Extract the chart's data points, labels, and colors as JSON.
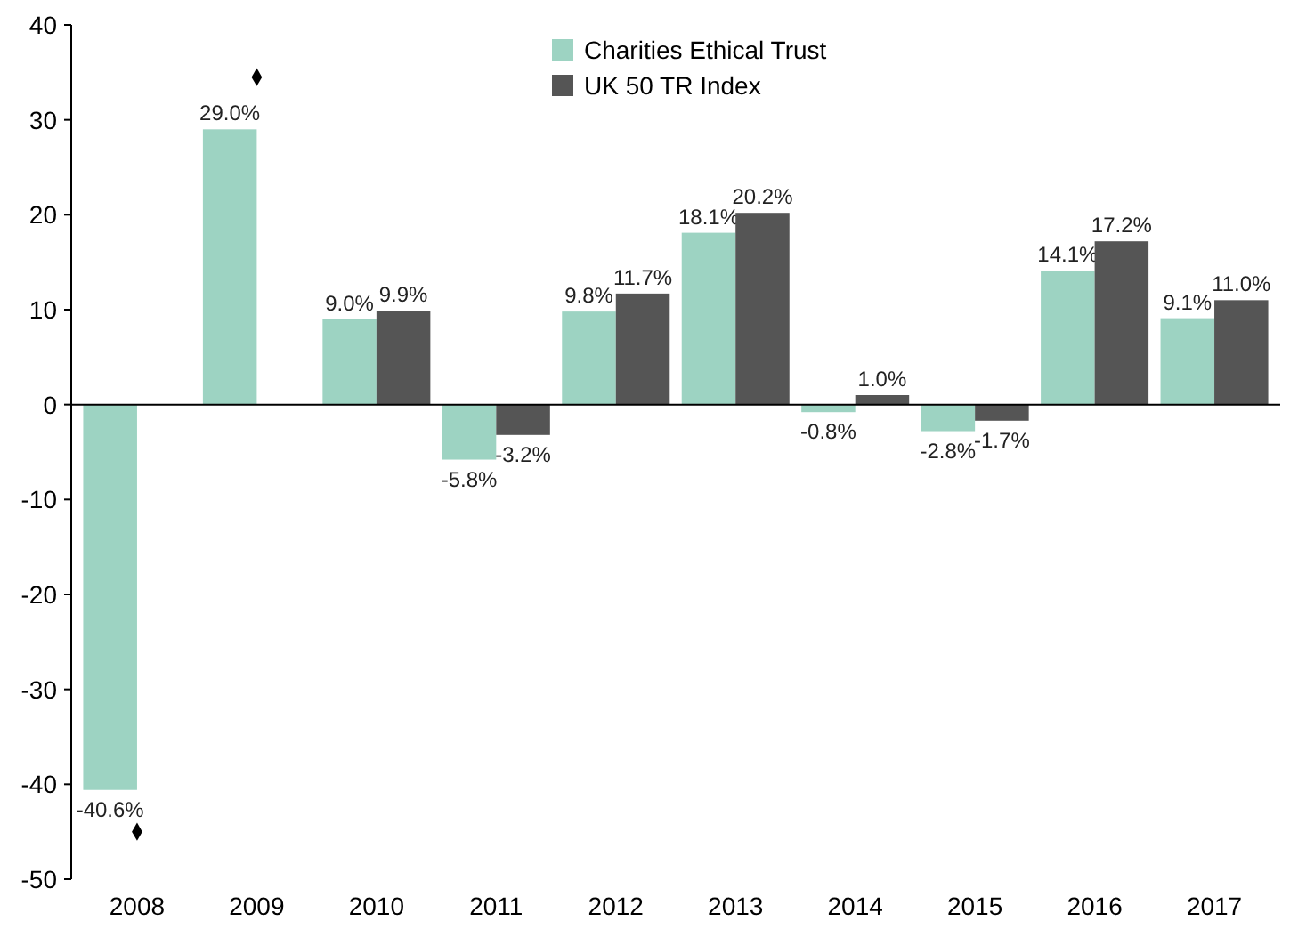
{
  "chart_data": {
    "type": "bar",
    "categories": [
      "2008",
      "2009",
      "2010",
      "2011",
      "2012",
      "2013",
      "2014",
      "2015",
      "2016",
      "2017"
    ],
    "series": [
      {
        "name": "Charities Ethical Trust",
        "color": "#9dd3c2",
        "values": [
          -40.6,
          29.0,
          9.0,
          -5.8,
          9.8,
          18.1,
          -0.8,
          -2.8,
          14.1,
          9.1
        ]
      },
      {
        "name": "UK 50 TR Index",
        "color": "#555555",
        "values": [
          null,
          null,
          9.9,
          -3.2,
          11.7,
          20.2,
          1.0,
          -1.7,
          17.2,
          11.0
        ]
      },
      {
        "type": "scatter",
        "color": "#000000",
        "values": [
          -45,
          34.5,
          null,
          null,
          null,
          null,
          null,
          null,
          null,
          null
        ]
      }
    ],
    "value_labels": [
      [
        "-40.6%",
        "29.0%",
        "9.0%",
        "-5.8%",
        "9.8%",
        "18.1%",
        "-0.8%",
        "-2.8%",
        "14.1%",
        "9.1%"
      ],
      [
        null,
        null,
        "9.9%",
        "-3.2%",
        "11.7%",
        "20.2%",
        "1.0%",
        "-1.7%",
        "17.2%",
        "11.0%"
      ]
    ],
    "ylim": [
      -50,
      40
    ],
    "yticks": [
      -50,
      -40,
      -30,
      -20,
      -10,
      0,
      10,
      20,
      30,
      40
    ],
    "legend": "top",
    "marker": "diamond"
  }
}
